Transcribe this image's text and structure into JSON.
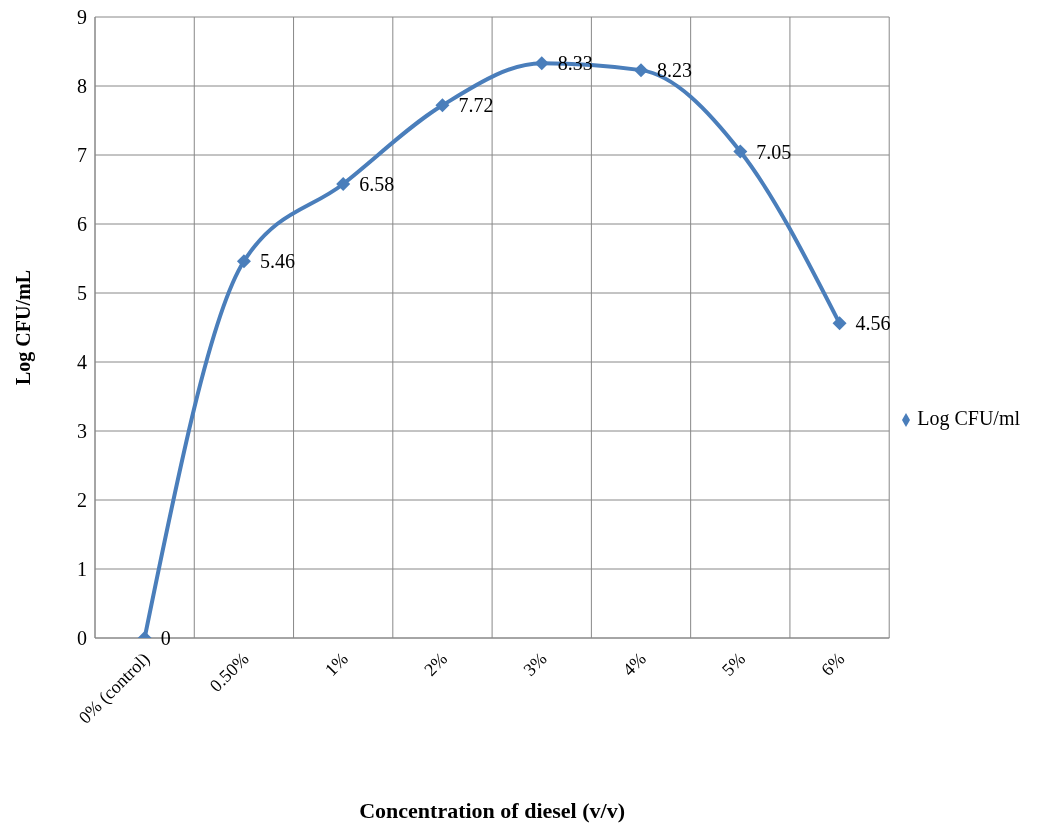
{
  "chart_data": {
    "type": "line",
    "xlabel": "Concentration of diesel (v/v)",
    "ylabel": "Log CFU/mL",
    "categories": [
      "0% (control)",
      "0.50%",
      "1%",
      "2%",
      "3%",
      "4%",
      "5%",
      "6%"
    ],
    "series": [
      {
        "name": "Log CFU/ml",
        "color": "#4a7ebb",
        "values": [
          0,
          5.46,
          6.58,
          7.72,
          8.33,
          8.23,
          7.05,
          4.56
        ]
      }
    ],
    "ylim": [
      0,
      9
    ],
    "yticks": [
      0,
      1,
      2,
      3,
      4,
      5,
      6,
      7,
      8,
      9
    ],
    "grid": true,
    "legend": "right",
    "marker": "diamond",
    "line_style": "solid",
    "data_labels": true
  }
}
